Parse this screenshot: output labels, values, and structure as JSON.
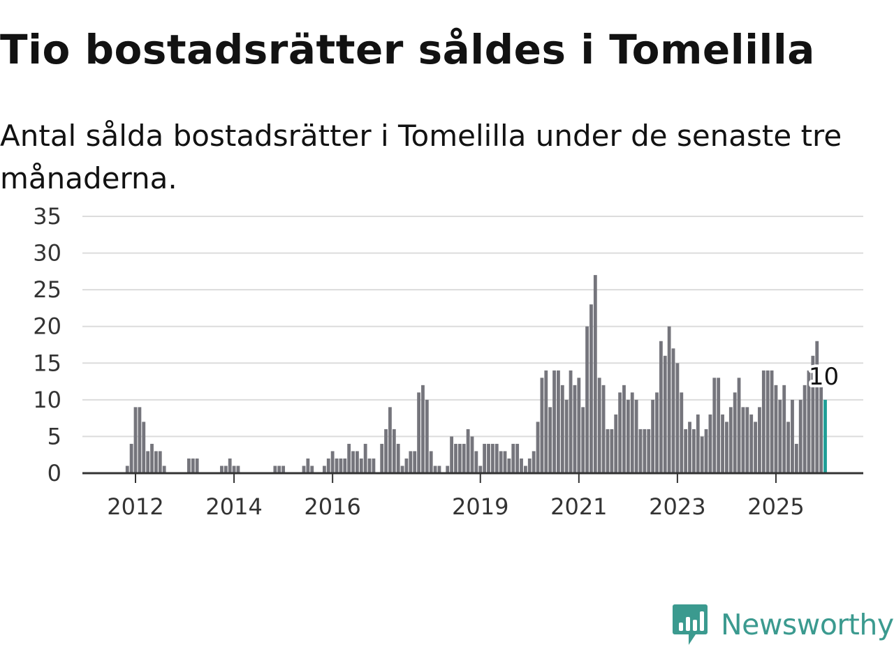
{
  "title": "Tio bostadsrätter såldes i Tomelilla",
  "subtitle": "Antal sålda bostadsrätter i Tomelilla under de senaste tre månaderna.",
  "logo": {
    "text": "Newsworthy",
    "color": "#3b9a8f",
    "icon": "bar-chart-speech-bubble-icon"
  },
  "colors": {
    "bar": "#75757c",
    "highlight": "#1f9e96",
    "grid": "#dcdcdc",
    "axis": "#333333"
  },
  "chart_data": {
    "type": "bar",
    "title": "",
    "xlabel": "",
    "ylabel": "",
    "ylim": [
      0,
      35
    ],
    "yticks": [
      0,
      5,
      10,
      15,
      20,
      25,
      30,
      35
    ],
    "xticks": [
      "2012",
      "2014",
      "2016",
      "2019",
      "2021",
      "2023",
      "2025"
    ],
    "x_start": "2011-09",
    "x_end": "2025-10",
    "grid": true,
    "last_value_label": "10",
    "values": [
      0,
      0,
      1,
      4,
      9,
      9,
      7,
      3,
      4,
      3,
      3,
      1,
      0,
      0,
      0,
      0,
      0,
      2,
      2,
      2,
      0,
      0,
      0,
      0,
      0,
      1,
      1,
      2,
      1,
      1,
      0,
      0,
      0,
      0,
      0,
      0,
      0,
      0,
      1,
      1,
      1,
      0,
      0,
      0,
      0,
      1,
      2,
      1,
      0,
      0,
      1,
      2,
      3,
      2,
      2,
      2,
      4,
      3,
      3,
      2,
      4,
      2,
      2,
      0,
      4,
      6,
      9,
      6,
      4,
      1,
      2,
      3,
      3,
      11,
      12,
      10,
      3,
      1,
      1,
      0,
      1,
      5,
      4,
      4,
      4,
      6,
      5,
      3,
      1,
      4,
      4,
      4,
      4,
      3,
      3,
      2,
      4,
      4,
      2,
      1,
      2,
      3,
      7,
      13,
      14,
      9,
      14,
      14,
      12,
      10,
      14,
      12,
      13,
      9,
      20,
      23,
      27,
      13,
      12,
      6,
      6,
      8,
      11,
      12,
      10,
      11,
      10,
      6,
      6,
      6,
      10,
      11,
      18,
      16,
      20,
      17,
      15,
      11,
      6,
      7,
      6,
      8,
      5,
      6,
      8,
      13,
      13,
      8,
      7,
      9,
      11,
      13,
      9,
      9,
      8,
      7,
      9,
      14,
      14,
      14,
      12,
      10,
      12,
      7,
      10,
      4,
      10,
      12,
      14,
      16,
      18,
      12,
      10
    ]
  }
}
